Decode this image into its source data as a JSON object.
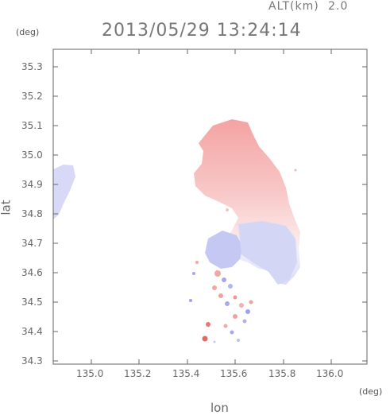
{
  "header": {
    "altitude_label": "ALT(km)",
    "altitude_value": "2.0",
    "datetime": "2013/05/29 13:24:14"
  },
  "axes": {
    "x_label": "lon",
    "y_label": "lat",
    "x_unit": "(deg)",
    "y_unit": "(deg)",
    "x_range": [
      134.87,
      136.18
    ],
    "y_range": [
      34.28,
      35.38
    ],
    "x_ticks": [
      "135.0",
      "135.2",
      "135.4",
      "135.6",
      "135.8",
      "136.0"
    ],
    "y_ticks": [
      "35.3",
      "35.2",
      "35.1",
      "35.0",
      "34.9",
      "34.8",
      "34.7",
      "34.6",
      "34.5",
      "34.4",
      "34.3"
    ]
  },
  "colors": {
    "approaching": "#9a9ef0",
    "receding": "#f0a0a0",
    "frame": "#666666"
  }
}
